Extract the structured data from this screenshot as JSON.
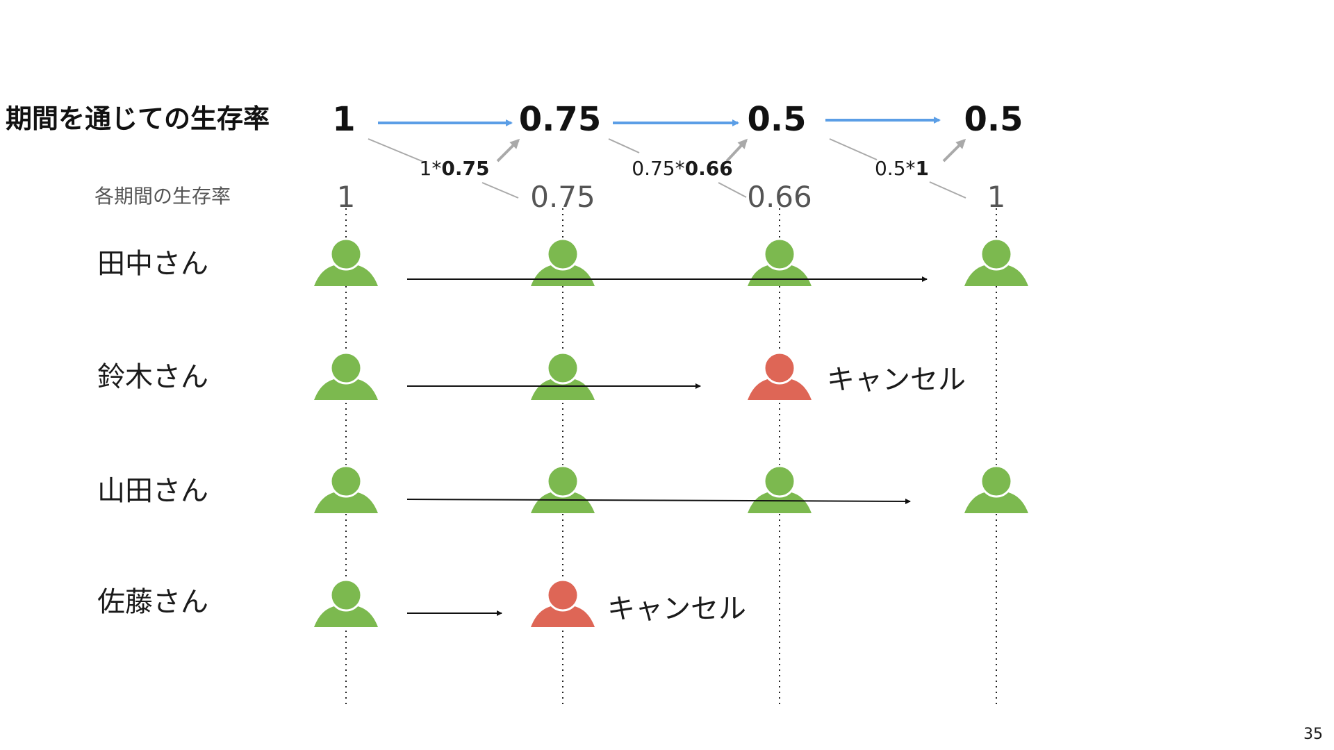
{
  "cumulative": {
    "label": "期間を通じての生存率",
    "values": [
      "1",
      "0.75",
      "0.5",
      "0.5"
    ]
  },
  "period": {
    "label": "各期間の生存率",
    "values": [
      "1",
      "0.75",
      "0.66",
      "1"
    ]
  },
  "formulas": [
    {
      "plain": "1*",
      "bold": "0.75"
    },
    {
      "plain": "0.75*",
      "bold": "0.66"
    },
    {
      "plain": "0.5*",
      "bold": "1"
    }
  ],
  "people": [
    {
      "name": "田中さん",
      "states": [
        "active",
        "active",
        "active",
        "active"
      ]
    },
    {
      "name": "鈴木さん",
      "states": [
        "active",
        "active",
        "cancelled",
        "none"
      ],
      "note": "キャンセル"
    },
    {
      "name": "山田さん",
      "states": [
        "active",
        "active",
        "active",
        "active"
      ]
    },
    {
      "name": "佐藤さん",
      "states": [
        "active",
        "cancelled",
        "none",
        "none"
      ],
      "note": "キャンセル"
    }
  ],
  "page_number": "35",
  "colors": {
    "active": "#7cb94f",
    "cancelled": "#de6656",
    "flow_arrow": "#5b9ee6",
    "multiply_arrow": "#a9a9a9",
    "text": "#111111",
    "muted": "#555555"
  }
}
